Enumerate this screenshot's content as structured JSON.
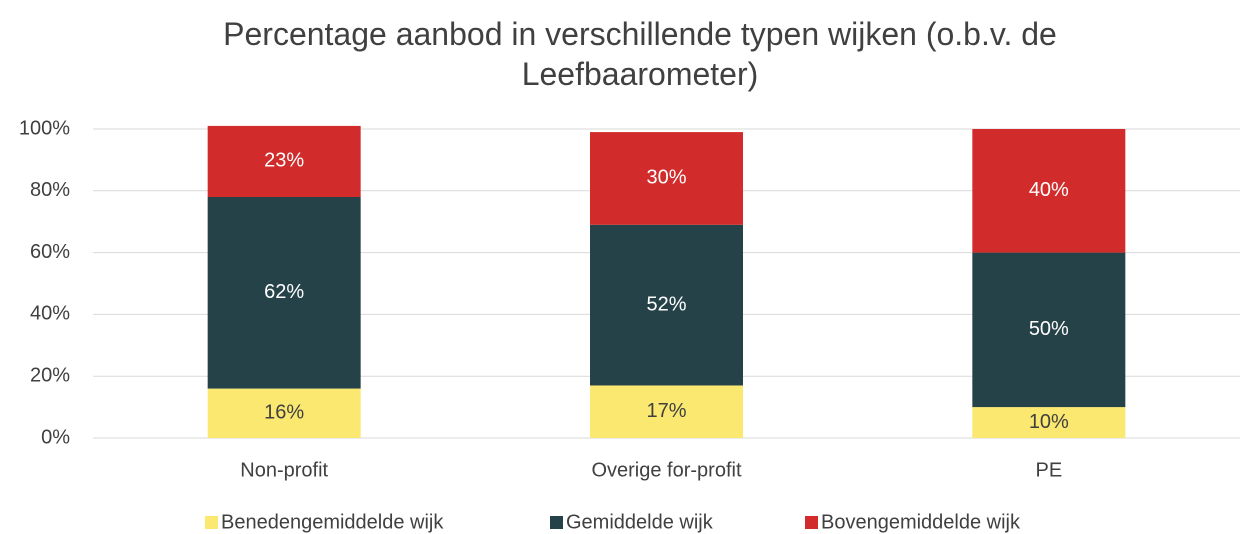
{
  "chart_data": {
    "type": "stacked_bar",
    "title": "Percentage aanbod in verschillende typen wijken (o.b.v. de Leefbaarometer)",
    "categories": [
      "Non-profit",
      "Overige for-profit",
      "PE"
    ],
    "series": [
      {
        "name": "Benedengemiddelde wijk",
        "color": "#fbe870",
        "values": [
          16,
          17,
          10
        ],
        "value_labels": [
          "16%",
          "17%",
          "10%"
        ]
      },
      {
        "name": "Gemiddelde wijk",
        "color": "#264249",
        "values": [
          62,
          52,
          50
        ],
        "value_labels": [
          "62%",
          "52%",
          "50%"
        ]
      },
      {
        "name": "Bovengemiddelde wijk",
        "color": "#d12b2b",
        "values": [
          23,
          30,
          40
        ],
        "value_labels": [
          "23%",
          "30%",
          "40%"
        ]
      }
    ],
    "ylim": [
      0,
      100
    ],
    "yticks": [
      {
        "value": 0,
        "label": "0%"
      },
      {
        "value": 20,
        "label": "20%"
      },
      {
        "value": 40,
        "label": "40%"
      },
      {
        "value": 60,
        "label": "60%"
      },
      {
        "value": 80,
        "label": "80%"
      },
      {
        "value": 100,
        "label": "100%"
      }
    ],
    "grid": true,
    "legend": "bottom"
  }
}
